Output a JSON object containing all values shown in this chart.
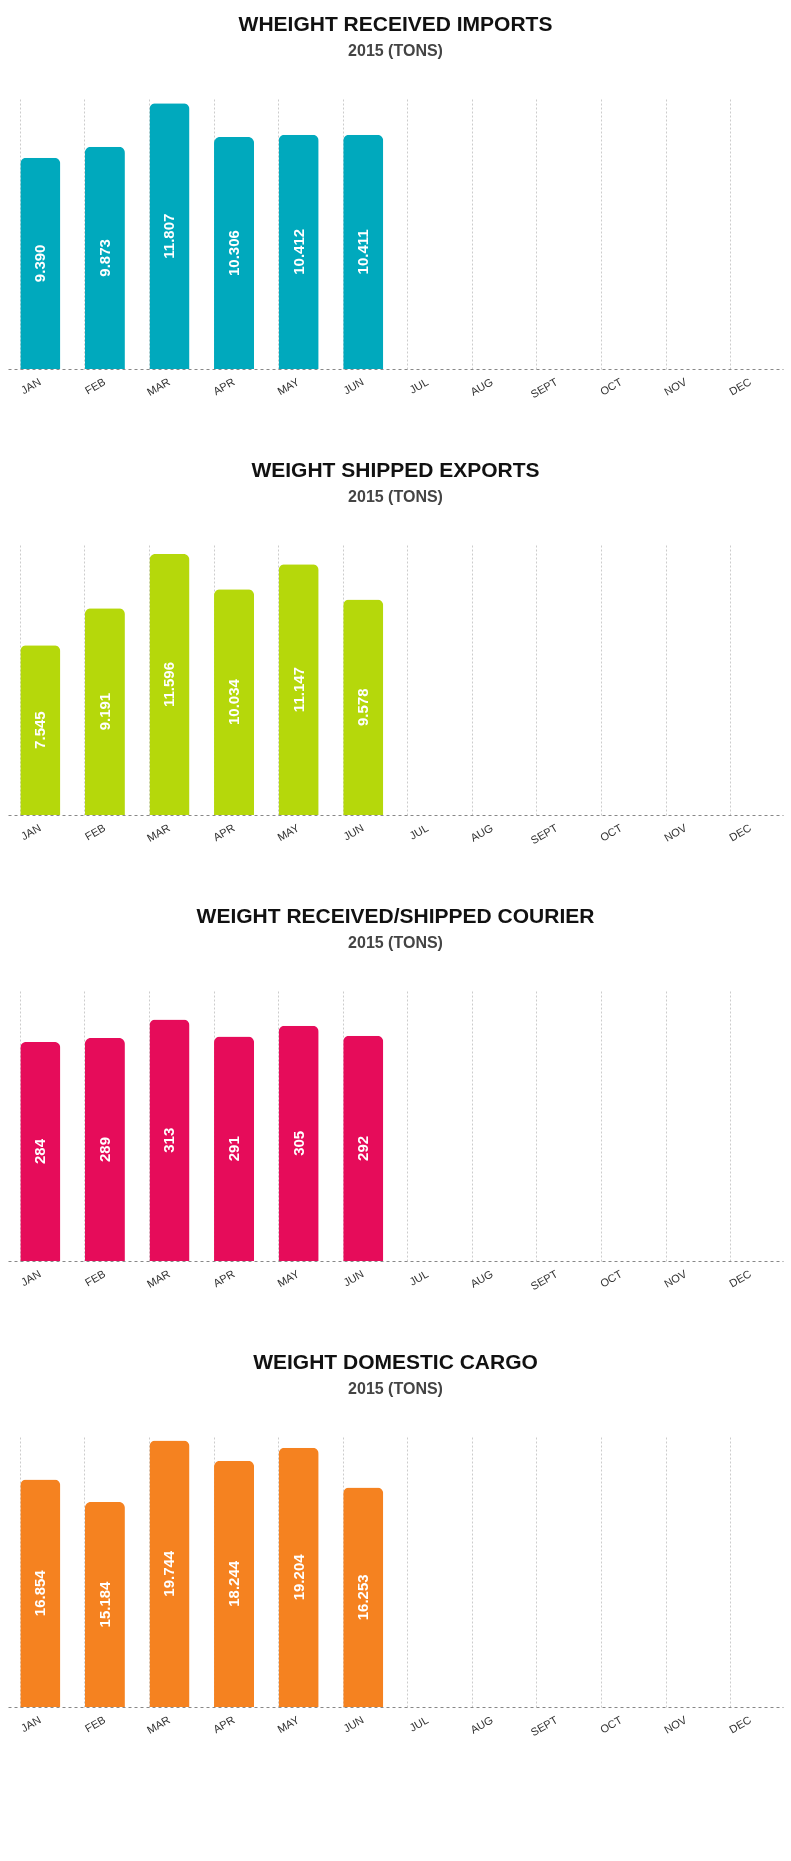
{
  "chart_data": [
    {
      "type": "bar",
      "title": "WHEIGHT RECEIVED IMPORTS",
      "subtitle": "2015 (TONS)",
      "categories": [
        "JAN",
        "FEB",
        "MAR",
        "APR",
        "MAY",
        "JUN",
        "JUL",
        "AUG",
        "SEPT",
        "OCT",
        "NOV",
        "DEC"
      ],
      "values": [
        9390,
        9873,
        11807,
        10306,
        10412,
        10411,
        null,
        null,
        null,
        null,
        null,
        null
      ],
      "value_labels": [
        "9.390",
        "9.873",
        "11.807",
        "10.306",
        "10.412",
        "10.411",
        null,
        null,
        null,
        null,
        null,
        null
      ],
      "color": "#00a9bd",
      "grid": "x",
      "tick_labels": "x"
    },
    {
      "type": "bar",
      "title": "WEIGHT SHIPPED EXPORTS",
      "subtitle": "2015 (TONS)",
      "categories": [
        "JAN",
        "FEB",
        "MAR",
        "APR",
        "MAY",
        "JUN",
        "JUL",
        "AUG",
        "SEPT",
        "OCT",
        "NOV",
        "DEC"
      ],
      "values": [
        7545,
        9191,
        11596,
        10034,
        11147,
        9578,
        null,
        null,
        null,
        null,
        null,
        null
      ],
      "value_labels": [
        "7.545",
        "9.191",
        "11.596",
        "10.034",
        "11.147",
        "9.578",
        null,
        null,
        null,
        null,
        null,
        null
      ],
      "color": "#b5d80b",
      "grid": "x",
      "tick_labels": "x"
    },
    {
      "type": "bar",
      "title": "WEIGHT RECEIVED/SHIPPED COURIER",
      "subtitle": "2015 (TONS)",
      "categories": [
        "JAN",
        "FEB",
        "MAR",
        "APR",
        "MAY",
        "JUN",
        "JUL",
        "AUG",
        "SEPT",
        "OCT",
        "NOV",
        "DEC"
      ],
      "values": [
        284,
        289,
        313,
        291,
        305,
        292,
        null,
        null,
        null,
        null,
        null,
        null
      ],
      "value_labels": [
        "284",
        "289",
        "313",
        "291",
        "305",
        "292",
        null,
        null,
        null,
        null,
        null,
        null
      ],
      "color": "#e60c5a",
      "grid": "x",
      "tick_labels": "x"
    },
    {
      "type": "bar",
      "title": "WEIGHT DOMESTIC CARGO",
      "subtitle": "2015 (TONS)",
      "categories": [
        "JAN",
        "FEB",
        "MAR",
        "APR",
        "MAY",
        "JUN",
        "JUL",
        "AUG",
        "SEPT",
        "OCT",
        "NOV",
        "DEC"
      ],
      "values": [
        16854,
        15184,
        19744,
        18244,
        19204,
        16253,
        null,
        null,
        null,
        null,
        null,
        null
      ],
      "value_labels": [
        "16.854",
        "15.184",
        "19.744",
        "18.244",
        "19.204",
        "16.253",
        null,
        null,
        null,
        null,
        null,
        null
      ],
      "color": "#f58220",
      "grid": "x",
      "tick_labels": "x"
    }
  ]
}
